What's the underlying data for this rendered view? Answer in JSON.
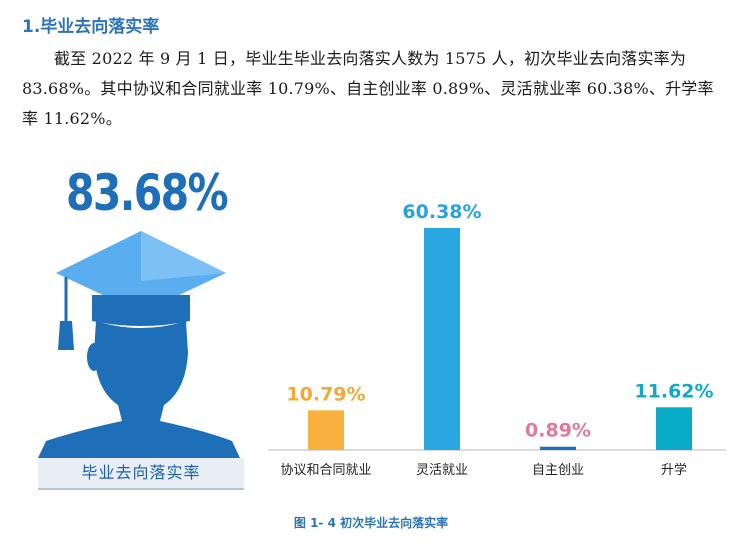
{
  "heading": "1.毕业去向落实率",
  "paragraph": {
    "line1": "截至 2022 年 9 月 1 日，毕业生毕业去向落实人数为 1575 人，初次毕业去向落实率为",
    "line2": "83.68%。其中协议和合同就业率 10.79%、自主创业率 0.89%、灵活就业率 60.38%、升学率",
    "line3": "率 11.62%。"
  },
  "infographic": {
    "big_rate": "83.68%",
    "caption": "毕业去向落实率",
    "icon": "graduate-silhouette-icon",
    "color": "#1e6fb8"
  },
  "chart_data": {
    "type": "bar",
    "categories": [
      "协议和合同就业",
      "灵活就业",
      "自主创业",
      "升学"
    ],
    "values": [
      10.79,
      60.38,
      0.89,
      11.62
    ],
    "data_labels": [
      "10.79%",
      "60.38%",
      "0.89%",
      "11.62%"
    ],
    "colors": [
      "#f8b13f",
      "#2aa6e0",
      "#1e6fb8",
      "#0aabc9"
    ],
    "label_colors": [
      "#f5a836",
      "#27a3dd",
      "#e07a97",
      "#11a9c6"
    ],
    "ylim": [
      0,
      62
    ],
    "grid": false,
    "legend": "none"
  },
  "figure_caption": "图 1- 4 初次毕业去向落实率"
}
